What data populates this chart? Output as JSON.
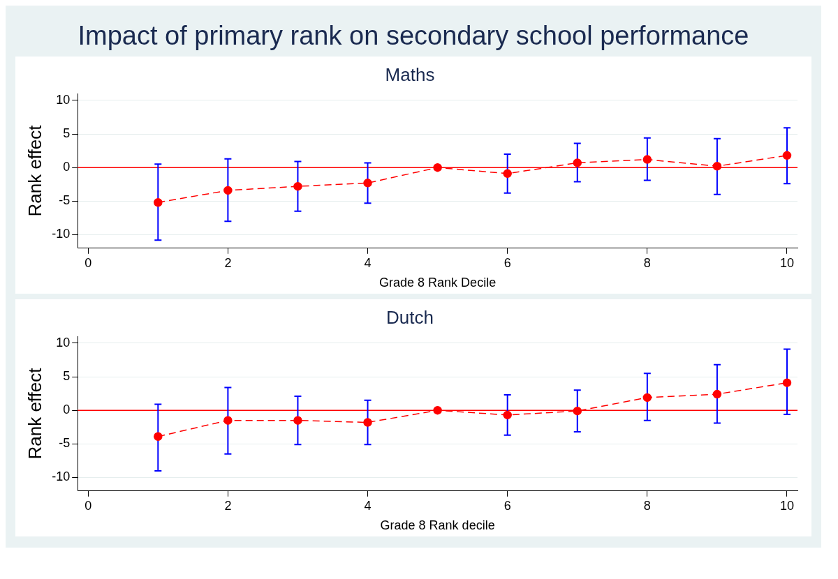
{
  "chart_data": [
    {
      "type": "line",
      "title": "Impact of primary rank on secondary school performance",
      "subtitle": "Maths",
      "xlabel": "Grade 8 Rank Decile",
      "ylabel": "Rank effect",
      "x": [
        1,
        2,
        3,
        4,
        5,
        6,
        7,
        8,
        9,
        10
      ],
      "series": [
        {
          "color": "#ff0000",
          "values": [
            -5.2,
            -3.4,
            -2.8,
            -2.3,
            0,
            -0.9,
            0.7,
            1.2,
            0.2,
            1.8
          ],
          "errors": [
            [
              -10.8,
              0.5
            ],
            [
              -8.0,
              1.3
            ],
            [
              -6.5,
              0.9
            ],
            [
              -5.3,
              0.7
            ],
            null,
            [
              -3.8,
              2.0
            ],
            [
              -2.1,
              3.6
            ],
            [
              -1.9,
              4.4
            ],
            [
              -4.0,
              4.3
            ],
            [
              -2.4,
              5.9
            ]
          ]
        }
      ],
      "xlim": [
        -0.15,
        10.15
      ],
      "xticks": [
        0,
        2,
        4,
        6,
        8,
        10
      ],
      "ylim": [
        -12,
        11
      ],
      "yticks": [
        -10,
        -5,
        0,
        5,
        10
      ],
      "grid": "y",
      "legend": false,
      "marker": "circle",
      "line_style": "dashed",
      "ref_lines": [
        {
          "axis": "y",
          "value": 0,
          "color": "#ff0000"
        }
      ]
    },
    {
      "type": "line",
      "title": "Dutch",
      "xlabel": "Grade 8 Rank decile",
      "ylabel": "Rank effect",
      "x": [
        1,
        2,
        3,
        4,
        5,
        6,
        7,
        8,
        9,
        10
      ],
      "series": [
        {
          "color": "#ff0000",
          "values": [
            -3.9,
            -1.5,
            -1.5,
            -1.8,
            0,
            -0.7,
            -0.1,
            1.9,
            2.4,
            4.1
          ],
          "errors": [
            [
              -9.0,
              0.9
            ],
            [
              -6.5,
              3.4
            ],
            [
              -5.1,
              2.1
            ],
            [
              -5.1,
              1.5
            ],
            null,
            [
              -3.7,
              2.3
            ],
            [
              -3.2,
              3.0
            ],
            [
              -1.5,
              5.5
            ],
            [
              -1.9,
              6.8
            ],
            [
              -0.6,
              9.1
            ]
          ]
        }
      ],
      "xlim": [
        -0.15,
        10.15
      ],
      "xticks": [
        0,
        2,
        4,
        6,
        8,
        10
      ],
      "ylim": [
        -12,
        11
      ],
      "yticks": [
        -10,
        -5,
        0,
        5,
        10
      ],
      "grid": "y",
      "legend": false,
      "marker": "circle",
      "line_style": "dashed",
      "ref_lines": [
        {
          "axis": "y",
          "value": 0,
          "color": "#ff0000"
        }
      ]
    }
  ]
}
